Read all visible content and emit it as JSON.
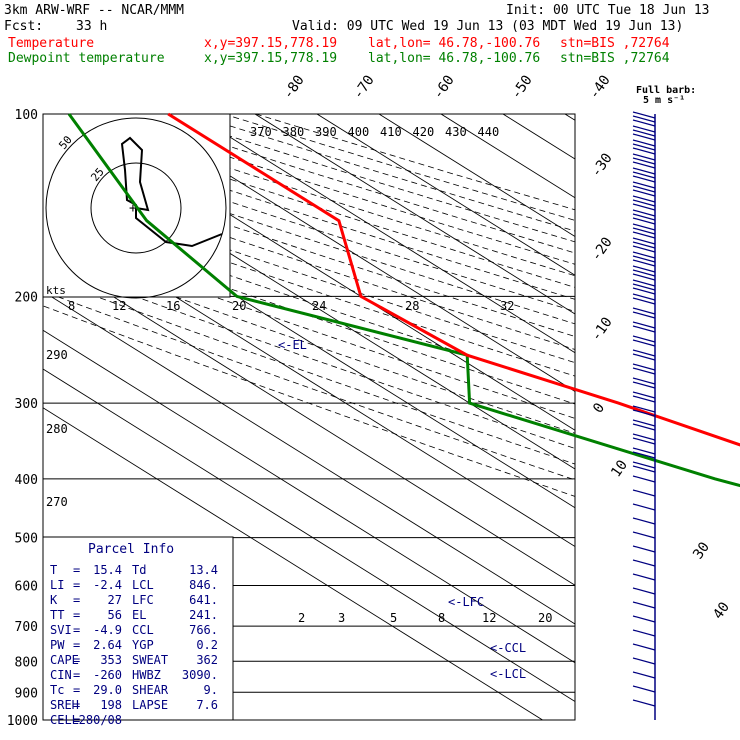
{
  "header": {
    "model": "3km ARW-WRF -- NCAR/MMM",
    "init": "Init: 00 UTC Tue 18 Jun 13",
    "fcst_label": "Fcst:",
    "fcst_value": "33 h",
    "valid": "Valid: 09 UTC Wed 19 Jun 13 (03 MDT Wed 19 Jun 13)",
    "temp_label": "Temperature",
    "dew_label": "Dewpoint temperature",
    "xy": "x,y=397.15,778.19",
    "latlon": "lat,lon= 46.78,-100.76",
    "stn": "stn=BIS ,72764"
  },
  "colors": {
    "temperature": "#ff0000",
    "dewpoint": "#008000",
    "wind": "#000080",
    "text_blue": "#000080"
  },
  "wind_legend": {
    "title": "Full barb:",
    "value": "5 m s⁻¹"
  },
  "hodograph": {
    "units_label": "kts",
    "ring_labels": [
      "50",
      "25"
    ]
  },
  "chart_data": {
    "type": "skew-t",
    "pressure_labels": [
      "100",
      "200",
      "300",
      "400",
      "500",
      "600",
      "700",
      "800",
      "900",
      "1000"
    ],
    "isotherm_labels": [
      "-80",
      "-70",
      "-60",
      "-50",
      "-40",
      "-30",
      "-20",
      "-10",
      "0",
      "10",
      "30",
      "40"
    ],
    "theta_labels": [
      "370",
      "380",
      "390",
      "400",
      "410",
      "420",
      "430",
      "440"
    ],
    "lower_theta_labels": [
      "290",
      "280",
      "270"
    ],
    "mixing_ratio_labels": [
      "8",
      "12",
      "16",
      "20",
      "24",
      "28",
      "32"
    ],
    "moisture_labels": [
      "2",
      "3",
      "5",
      "8",
      "12",
      "20"
    ],
    "level_markers": [
      "<-EL",
      "<-LFC",
      "<-CCL",
      "<-LCL"
    ],
    "temperature_profile": [
      [
        100,
        -44
      ],
      [
        150,
        -44
      ],
      [
        200,
        -60
      ],
      [
        250,
        -58
      ],
      [
        300,
        -46
      ],
      [
        400,
        -30
      ],
      [
        500,
        -17
      ],
      [
        600,
        -6
      ],
      [
        700,
        2
      ],
      [
        800,
        12
      ],
      [
        850,
        18
      ],
      [
        900,
        22
      ],
      [
        950,
        20
      ],
      [
        975,
        18
      ]
    ],
    "dewpoint_profile": [
      [
        100,
        -60
      ],
      [
        150,
        -75
      ],
      [
        200,
        -80
      ],
      [
        250,
        -58
      ],
      [
        300,
        -70
      ],
      [
        400,
        -50
      ],
      [
        500,
        -30
      ],
      [
        600,
        -6
      ],
      [
        700,
        -6
      ],
      [
        800,
        10
      ],
      [
        850,
        13
      ],
      [
        900,
        13
      ],
      [
        950,
        12
      ]
    ],
    "parcel_info": {
      "title": "Parcel Info",
      "rows": [
        [
          "T",
          "15.4",
          "Td",
          "13.4"
        ],
        [
          "LI",
          "-2.4",
          "LCL",
          "846."
        ],
        [
          "K",
          "27",
          "LFC",
          "641."
        ],
        [
          "TT",
          "56",
          "EL",
          "241."
        ],
        [
          "SVI",
          "-4.9",
          "CCL",
          "766."
        ],
        [
          "PW",
          "2.64",
          "YGP",
          "0.2"
        ],
        [
          "CAPE",
          "353",
          "SWEAT",
          "362"
        ],
        [
          "CIN",
          "-260",
          "HWBZ",
          "3090."
        ],
        [
          "Tc",
          "29.0",
          "SHEAR",
          "9."
        ],
        [
          "SREH",
          "198",
          "LAPSE",
          "7.6"
        ],
        [
          "CELL",
          "280/08",
          "",
          ""
        ]
      ]
    }
  }
}
